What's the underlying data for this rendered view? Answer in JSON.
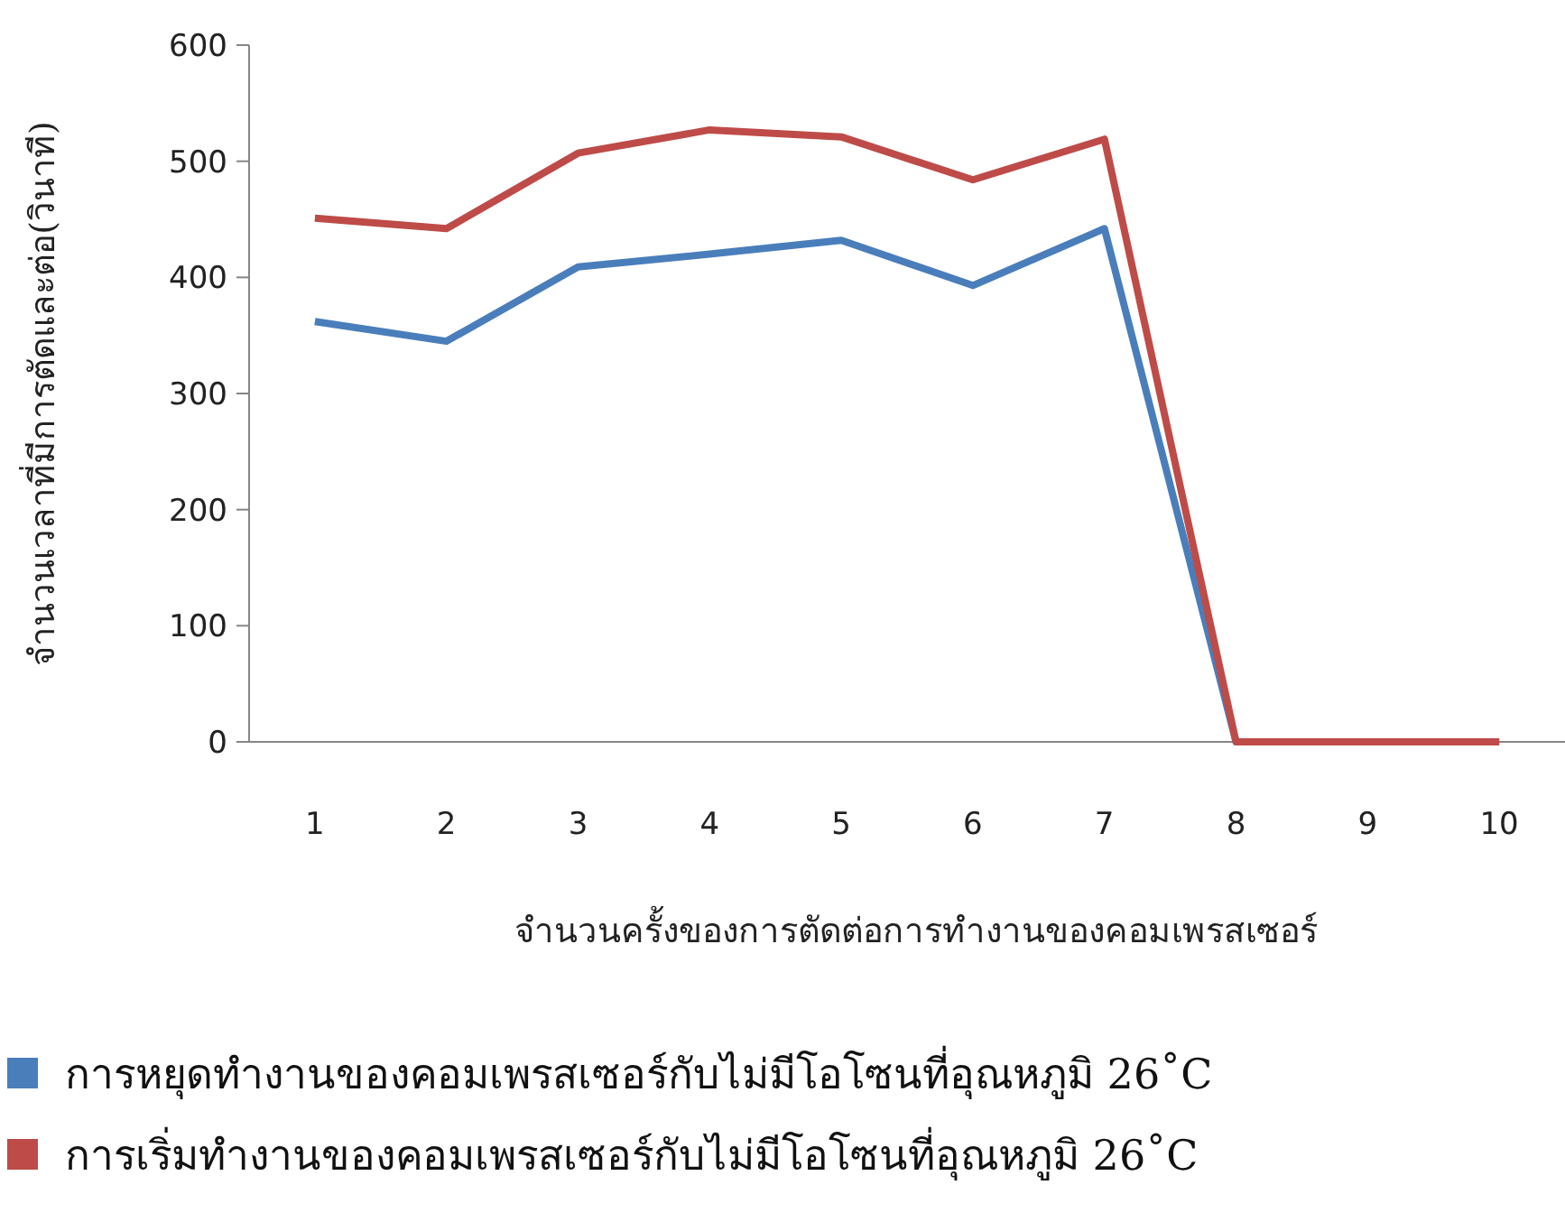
{
  "chart_data": {
    "type": "line",
    "ylabel": "จำนวนเวลาที่มีการตัดและต่อ(วินาที)",
    "xlabel": "จำนวนครั้งของการตัดต่อการทำงานของคอมเพรสเซอร์",
    "categories": [
      "1",
      "2",
      "3",
      "4",
      "5",
      "6",
      "7",
      "8",
      "9",
      "10"
    ],
    "ylim": [
      0,
      600
    ],
    "yticks": [
      0,
      100,
      200,
      300,
      400,
      500,
      600
    ],
    "grid": false,
    "legend": "bottom left",
    "marker": "none",
    "line_style": "solid",
    "series": [
      {
        "name": "การหยุดทำงานของคอมเพรสเซอร์กับไม่มีโอโซนที่อุณหภูมิ 26˚C",
        "color": "#4a7ebb",
        "values": [
          362,
          345,
          409,
          420,
          432,
          393,
          442,
          0,
          0,
          0
        ]
      },
      {
        "name": "การเริ่มทำงานของคอมเพรสเซอร์กับไม่มีโอโซนที่อุณหภูมิ 26˚C",
        "color": "#be4b48",
        "values": [
          451,
          442,
          507,
          527,
          521,
          484,
          519,
          0,
          0,
          0
        ]
      }
    ]
  }
}
